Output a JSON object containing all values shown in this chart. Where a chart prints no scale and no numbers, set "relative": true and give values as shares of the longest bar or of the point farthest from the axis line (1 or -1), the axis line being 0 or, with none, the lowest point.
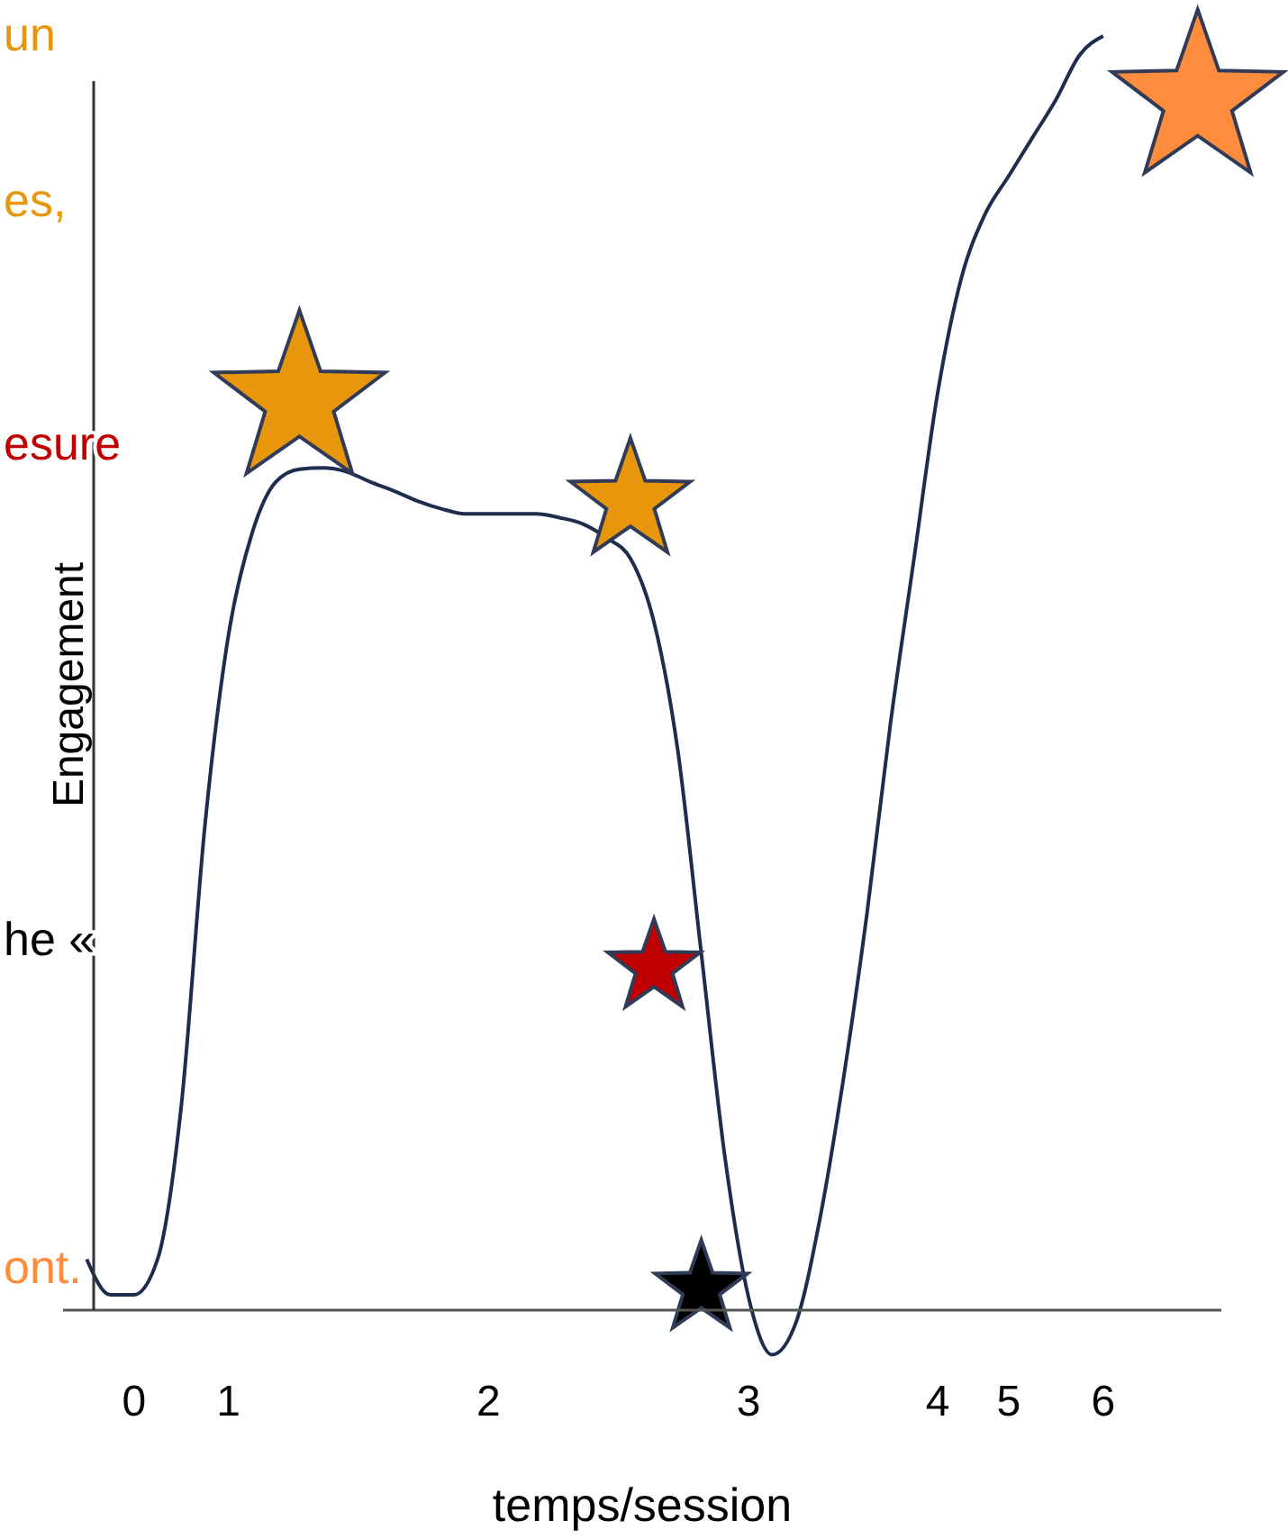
{
  "chart_data": {
    "type": "line",
    "relative": true,
    "xlabel": "temps/session",
    "ylabel": "Engagement",
    "annotations": [
      "un",
      "es,",
      "esure",
      "he «",
      "ont."
    ],
    "categories": [
      null,
      null,
      null,
      "0",
      null,
      null,
      null,
      "1",
      null,
      null,
      null,
      null,
      null,
      null,
      null,
      null,
      null,
      null,
      "2",
      null,
      null,
      null,
      null,
      null,
      null,
      null,
      null,
      null,
      null,
      "3",
      null,
      null,
      null,
      null,
      null,
      null,
      null,
      "4",
      null,
      null,
      "5",
      null,
      null,
      null,
      "6",
      null,
      null,
      null,
      null,
      null
    ],
    "tick_labels": "x",
    "series": [
      {
        "color": "#1f2d4d",
        "values": [
          null,
          0.04,
          0.012,
          0.012,
          0.04,
          0.16,
          0.38,
          0.53,
          0.61,
          0.65,
          0.66,
          0.661,
          0.658,
          0.65,
          0.643,
          0.635,
          0.629,
          0.625,
          0.625,
          0.625,
          0.625,
          0.622,
          0.617,
          0.606,
          0.59,
          0.54,
          0.44,
          0.28,
          0.12,
          0.01,
          -0.035,
          -0.01,
          0.07,
          0.18,
          0.31,
          0.46,
          0.59,
          0.72,
          0.81,
          0.86,
          0.89,
          0.92,
          0.95,
          0.985,
          1.0,
          null,
          null,
          null,
          null,
          null
        ]
      },
      {
        "type": "bubble",
        "marker": "star",
        "values": [
          null,
          null,
          null,
          null,
          null,
          null,
          null,
          null,
          null,
          null,
          0.714,
          null,
          null,
          null,
          null,
          null,
          null,
          null,
          null,
          null,
          null,
          null,
          null,
          null,
          0.635,
          0.269,
          null,
          0.017,
          null,
          null,
          null,
          null,
          null,
          null,
          null,
          null,
          null,
          null,
          null,
          null,
          null,
          null,
          null,
          null,
          null,
          null,
          null,
          null,
          0.95,
          null
        ],
        "colors": [
          null,
          null,
          null,
          null,
          null,
          null,
          null,
          null,
          null,
          null,
          "#e8960c",
          null,
          null,
          null,
          null,
          null,
          null,
          null,
          null,
          null,
          null,
          null,
          null,
          null,
          "#e8960c",
          "#c00000",
          null,
          "#000000",
          null,
          null,
          null,
          null,
          null,
          null,
          null,
          null,
          null,
          null,
          null,
          null,
          null,
          null,
          null,
          null,
          null,
          null,
          null,
          null,
          "#ff8c3c",
          null
        ],
        "sizes": [
          null,
          null,
          null,
          null,
          null,
          null,
          null,
          null,
          null,
          null,
          1,
          null,
          null,
          null,
          null,
          null,
          null,
          null,
          null,
          null,
          null,
          null,
          null,
          null,
          0.49,
          0.29,
          null,
          0.29,
          null,
          null,
          null,
          null,
          null,
          null,
          null,
          null,
          null,
          null,
          null,
          null,
          null,
          null,
          null,
          null,
          null,
          null,
          null,
          null,
          1,
          null
        ]
      }
    ]
  }
}
